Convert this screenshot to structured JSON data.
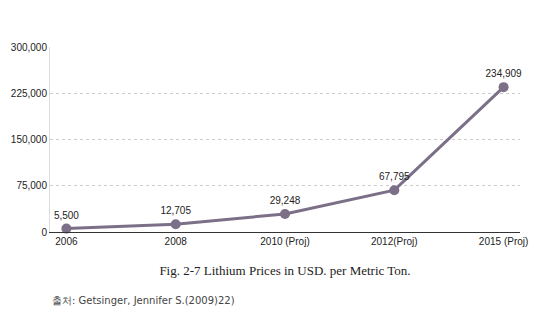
{
  "chart_data": {
    "type": "line",
    "title": "Fig. 2-7 Lithium Prices in USD. per Metric Ton.",
    "annotations": [
      {
        "text": "출처: Getsinger, Jennifer S.(2009)22)"
      }
    ],
    "categories": [
      "2006",
      "2008",
      "2010 (Proj)",
      "2012(Proj)",
      "2015 (Proj)"
    ],
    "values": [
      5500,
      12705,
      29248,
      67795,
      234909
    ],
    "value_labels": [
      "5,500",
      "12,705",
      "29,248",
      "67,795",
      "234,909"
    ],
    "data_labels": true,
    "color": "#7b7088",
    "marker": "circle",
    "line_style": "solid",
    "ylim": [
      0,
      300000
    ],
    "yticks": [
      0,
      {
        "value": 75000,
        "label": "75,000"
      },
      {
        "value": 150000,
        "label": "150,000"
      },
      {
        "value": 225000,
        "label": "225,000"
      },
      {
        "value": 300000,
        "label": "300,000"
      }
    ],
    "grid": true
  }
}
